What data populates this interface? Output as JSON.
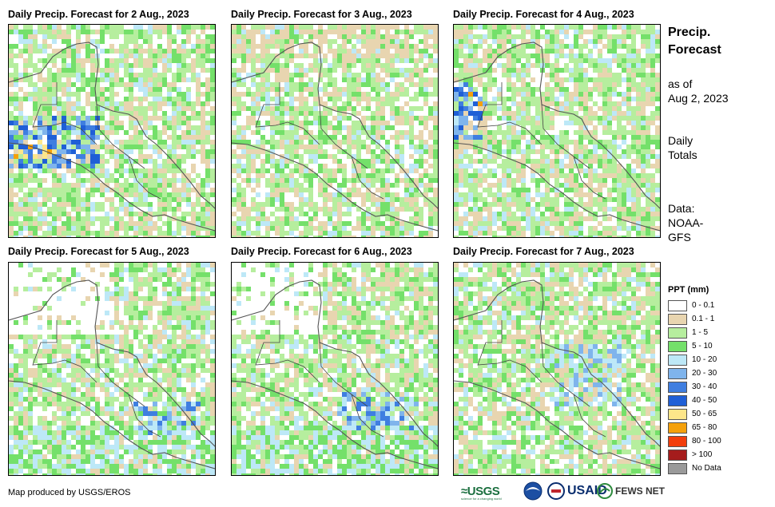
{
  "panels": [
    {
      "title": "Daily Precip. Forecast for 2 Aug., 2023",
      "seed": 2
    },
    {
      "title": "Daily Precip. Forecast for 3 Aug., 2023",
      "seed": 3
    },
    {
      "title": "Daily Precip. Forecast for 4 Aug., 2023",
      "seed": 4
    },
    {
      "title": "Daily Precip. Forecast for 5 Aug., 2023",
      "seed": 5
    },
    {
      "title": "Daily Precip. Forecast for 6 Aug., 2023",
      "seed": 6
    },
    {
      "title": "Daily Precip. Forecast for 7 Aug., 2023",
      "seed": 7
    }
  ],
  "side": {
    "title_line1": "Precip.",
    "title_line2": "Forecast",
    "asof_line1": "as of",
    "asof_line2": "Aug 2, 2023",
    "daily_line1": "Daily",
    "daily_line2": "Totals",
    "src_line1": "Data:",
    "src_line2": "NOAA-",
    "src_line3": "GFS"
  },
  "legend": {
    "title": "PPT (mm)",
    "items": [
      {
        "label": "0 - 0.1",
        "color": "#ffffff"
      },
      {
        "label": "0.1 - 1",
        "color": "#e8d5b0"
      },
      {
        "label": "1 - 5",
        "color": "#b6ee9e"
      },
      {
        "label": "5 - 10",
        "color": "#74e06a"
      },
      {
        "label": "10 - 20",
        "color": "#bde8f7"
      },
      {
        "label": "20 - 30",
        "color": "#7fb4ec"
      },
      {
        "label": "30 - 40",
        "color": "#3f7ee0"
      },
      {
        "label": "40 - 50",
        "color": "#1f5fd6"
      },
      {
        "label": "50 - 65",
        "color": "#fde68a"
      },
      {
        "label": "65 - 80",
        "color": "#f5a10c"
      },
      {
        "label": "80 - 100",
        "color": "#f23e0c"
      },
      {
        "label": "> 100",
        "color": "#a51c1c"
      },
      {
        "label": "No Data",
        "color": "#9a9a9a"
      }
    ]
  },
  "footer": {
    "credit": "Map produced by USGS/EROS",
    "logo_usgs": "≈USGS",
    "logo_usgs_tag": "science for a changing world",
    "logo_usaid": "USAID",
    "logo_fews": "FEWS NET"
  }
}
